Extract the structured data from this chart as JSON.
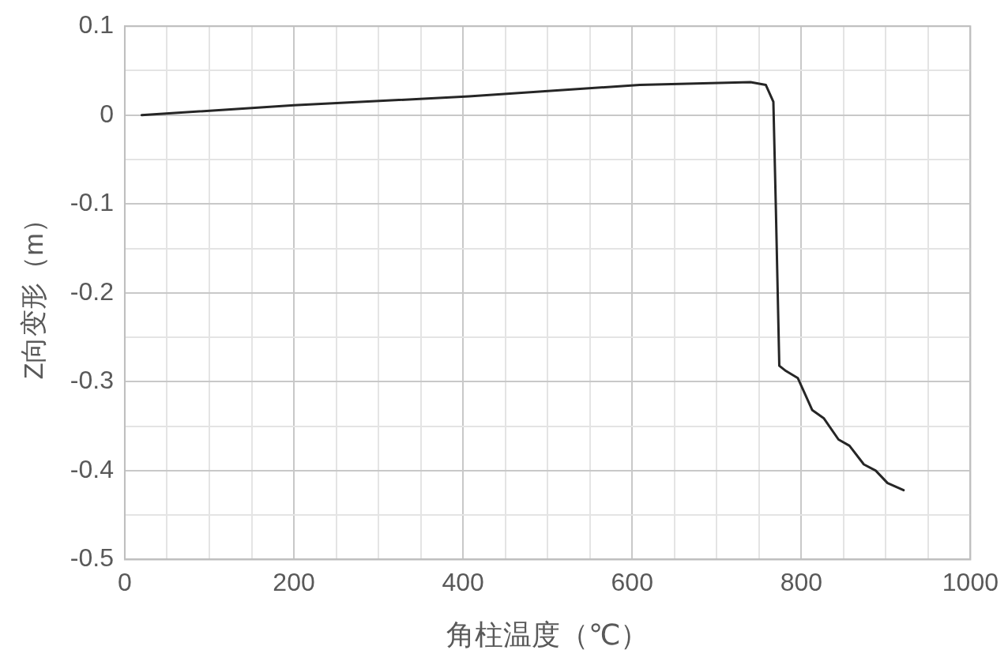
{
  "chart_data": {
    "type": "line",
    "xlabel": "角柱温度（℃）",
    "ylabel": "Z向变形（m）",
    "x": [
      20,
      200,
      407,
      609,
      740,
      758,
      767,
      770,
      774,
      782,
      796,
      813,
      826.5,
      844,
      857,
      874,
      888,
      902,
      921
    ],
    "series": [
      {
        "color": "#262626",
        "values": [
          0,
          0.011,
          0.021,
          0.034,
          0.037,
          0.034,
          0.015,
          -0.107,
          -0.282,
          -0.288,
          -0.296,
          -0.332,
          -0.341,
          -0.365,
          -0.372,
          -0.393,
          -0.4,
          -0.414,
          -0.422
        ]
      }
    ],
    "xlim": [
      0,
      1000
    ],
    "xticks": [
      0,
      {
        "value": 50,
        "label": null
      },
      200,
      {
        "value": 100,
        "label": null
      },
      {
        "value": 150,
        "label": null
      },
      {
        "value": 250,
        "label": null
      },
      {
        "value": 300,
        "label": null
      },
      {
        "value": 350,
        "label": null
      },
      400,
      {
        "value": 450,
        "label": null
      },
      {
        "value": 500,
        "label": null
      },
      {
        "value": 550,
        "label": null
      },
      600,
      {
        "value": 650,
        "label": null
      },
      {
        "value": 700,
        "label": null
      },
      {
        "value": 750,
        "label": null
      },
      800,
      {
        "value": 850,
        "label": null
      },
      {
        "value": 900,
        "label": null
      },
      {
        "value": 950,
        "label": null
      },
      1000
    ],
    "ylim": [
      -0.5,
      0.1
    ],
    "yticks": [
      -0.5,
      {
        "value": -0.45,
        "label": null
      },
      -0.4,
      {
        "value": -0.35,
        "label": null
      },
      -0.3,
      {
        "value": -0.25,
        "label": null
      },
      -0.2,
      {
        "value": -0.15,
        "label": null
      },
      -0.1,
      {
        "value": -0.05,
        "label": null
      },
      0,
      {
        "value": 0.05,
        "label": null
      },
      0.1
    ],
    "grid": true,
    "legend": false,
    "marker": "none",
    "line_style": "solid"
  }
}
